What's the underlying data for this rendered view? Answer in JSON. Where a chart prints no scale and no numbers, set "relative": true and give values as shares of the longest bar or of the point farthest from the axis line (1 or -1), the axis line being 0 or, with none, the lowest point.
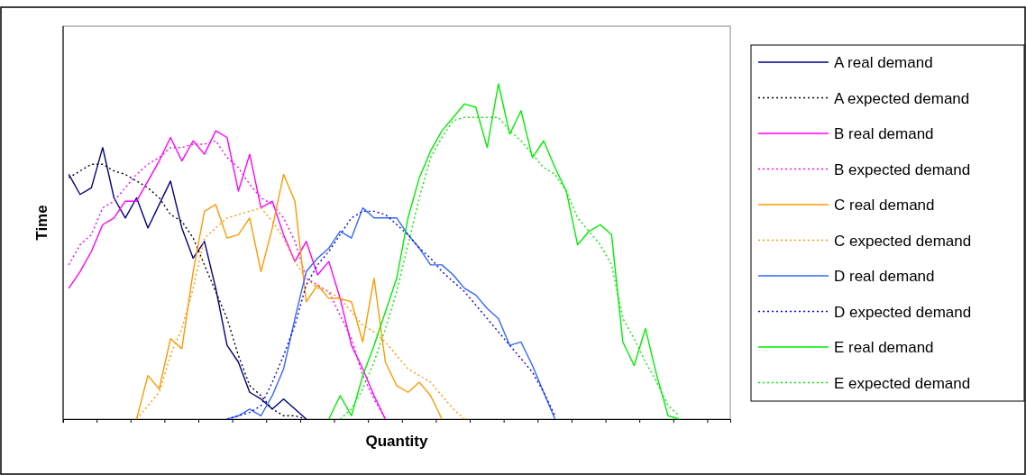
{
  "chart_data": {
    "type": "line",
    "xlabel": "Quantity",
    "ylabel": "Time",
    "relative": true,
    "legend": "right",
    "marker": "none",
    "categories": [
      null,
      null,
      null,
      null,
      null,
      null,
      null,
      null,
      null,
      null,
      null,
      null,
      null,
      null,
      null,
      null,
      null,
      null,
      null,
      null,
      null,
      null,
      null,
      null,
      null,
      null,
      null,
      null,
      null,
      null,
      null,
      null,
      null,
      null,
      null,
      null,
      null,
      null,
      null,
      null,
      null,
      null,
      null,
      null,
      null,
      null,
      null,
      null,
      null,
      null,
      null,
      null,
      null,
      null,
      null,
      null,
      null,
      null,
      null
    ],
    "series": [
      {
        "name": "A real demand",
        "color": "#000080",
        "line_style": "solid",
        "values": [
          0.73,
          0.67,
          0.69,
          0.81,
          0.66,
          0.6,
          0.66,
          0.57,
          0.64,
          0.71,
          0.57,
          0.48,
          0.53,
          0.39,
          0.22,
          0.17,
          0.08,
          0.06,
          0.03,
          0.06,
          0.03,
          0,
          null,
          null,
          null,
          null,
          null,
          null,
          null,
          null,
          null,
          null,
          null,
          null,
          null,
          null,
          null,
          null,
          null,
          null,
          null,
          null,
          null,
          null,
          null,
          null,
          null,
          null,
          null,
          null,
          null,
          null,
          null,
          null,
          null,
          null,
          null,
          null,
          null
        ]
      },
      {
        "name": "A expected demand",
        "color": "#000000",
        "line_style": "dotted",
        "values": [
          0.72,
          0.74,
          0.76,
          0.76,
          0.74,
          0.73,
          0.71,
          0.69,
          0.66,
          0.61,
          0.59,
          0.54,
          0.46,
          0.38,
          0.3,
          0.19,
          0.1,
          0.07,
          0.03,
          0.01,
          0.01,
          0,
          null,
          null,
          null,
          null,
          null,
          null,
          null,
          null,
          null,
          null,
          null,
          null,
          null,
          null,
          null,
          null,
          null,
          null,
          null,
          null,
          null,
          null,
          null,
          null,
          null,
          null,
          null,
          null,
          null,
          null,
          null,
          null,
          null,
          null,
          null,
          null,
          null
        ]
      },
      {
        "name": "B real demand",
        "color": "#ff00ff",
        "line_style": "solid",
        "values": [
          0.39,
          0.44,
          0.5,
          0.58,
          0.6,
          0.65,
          0.65,
          0.71,
          0.77,
          0.84,
          0.77,
          0.83,
          0.79,
          0.86,
          0.84,
          0.68,
          0.79,
          0.63,
          0.65,
          0.55,
          0.47,
          0.53,
          0.43,
          0.47,
          0.36,
          0.22,
          0.15,
          0.07,
          0,
          null,
          null,
          null,
          null,
          null,
          null,
          null,
          null,
          null,
          null,
          null,
          null,
          null,
          null,
          null,
          null,
          null,
          null,
          null,
          null,
          null,
          null,
          null,
          null,
          null,
          null,
          null,
          null,
          null,
          null
        ]
      },
      {
        "name": "B expected demand",
        "color": "#ff00ff",
        "line_style": "dotted",
        "values": [
          0.46,
          0.52,
          0.55,
          0.63,
          0.65,
          0.69,
          0.73,
          0.76,
          0.78,
          0.81,
          0.81,
          0.82,
          0.82,
          0.83,
          0.78,
          0.75,
          0.7,
          0.66,
          0.64,
          0.6,
          0.53,
          0.42,
          0.4,
          0.38,
          0.31,
          0.24,
          0.13,
          0.06,
          0,
          null,
          null,
          null,
          null,
          null,
          null,
          null,
          null,
          null,
          null,
          null,
          null,
          null,
          null,
          null,
          null,
          null,
          null,
          null,
          null,
          null,
          null,
          null,
          null,
          null,
          null,
          null,
          null,
          null,
          null
        ]
      },
      {
        "name": "C real demand",
        "color": "#ff9900",
        "line_style": "solid",
        "values": [
          null,
          null,
          null,
          null,
          null,
          null,
          0,
          0.13,
          0.09,
          0.24,
          0.21,
          0.44,
          0.62,
          0.64,
          0.54,
          0.55,
          0.6,
          0.44,
          0.57,
          0.73,
          0.65,
          0.35,
          0.4,
          0.36,
          0.36,
          0.35,
          0.23,
          0.42,
          0.17,
          0.1,
          0.08,
          0.11,
          0.07,
          0,
          null,
          null,
          null,
          null,
          null,
          null,
          null,
          null,
          null,
          null,
          null,
          null,
          null,
          null,
          null,
          null,
          null,
          null,
          null,
          null,
          null,
          null,
          null,
          null,
          null
        ]
      },
      {
        "name": "C expected demand",
        "color": "#ff9900",
        "line_style": "dotted",
        "values": [
          null,
          null,
          null,
          null,
          null,
          null,
          0,
          0.04,
          0.08,
          0.19,
          0.27,
          0.39,
          0.54,
          0.57,
          0.6,
          0.61,
          0.62,
          0.63,
          0.59,
          0.54,
          0.47,
          0.42,
          0.39,
          0.38,
          0.36,
          0.32,
          0.28,
          0.26,
          0.23,
          0.19,
          0.15,
          0.13,
          0.11,
          0.07,
          0.03,
          0,
          null,
          null,
          null,
          null,
          null,
          null,
          null,
          null,
          null,
          null,
          null,
          null,
          null,
          null,
          null,
          null,
          null,
          null,
          null,
          null,
          null,
          null,
          null
        ]
      },
      {
        "name": "D real demand",
        "color": "#3366ff",
        "line_style": "solid",
        "values": [
          null,
          null,
          null,
          null,
          null,
          null,
          null,
          null,
          null,
          null,
          null,
          null,
          null,
          null,
          0,
          0.01,
          0.03,
          0.01,
          0.07,
          0.15,
          0.3,
          0.44,
          0.48,
          0.51,
          0.56,
          0.54,
          0.63,
          0.6,
          0.6,
          0.6,
          0.55,
          0.51,
          0.46,
          0.46,
          0.43,
          0.39,
          0.37,
          0.33,
          0.3,
          0.22,
          0.23,
          0.16,
          0.08,
          0,
          null,
          null,
          null,
          null,
          null,
          null,
          null,
          null,
          null,
          null,
          null,
          null,
          null,
          null,
          null
        ]
      },
      {
        "name": "D expected demand",
        "color": "#0000ff",
        "line_style": "dotted",
        "values": [
          null,
          null,
          null,
          null,
          null,
          null,
          null,
          null,
          null,
          null,
          null,
          null,
          null,
          null,
          0,
          0.01,
          0.02,
          0.04,
          0.11,
          0.19,
          0.28,
          0.4,
          0.46,
          0.5,
          0.55,
          0.6,
          0.62,
          0.62,
          0.61,
          0.58,
          0.55,
          0.51,
          0.48,
          0.44,
          0.41,
          0.38,
          0.34,
          0.3,
          0.26,
          0.22,
          0.18,
          0.14,
          0.08,
          0.01,
          null,
          null,
          null,
          null,
          null,
          null,
          null,
          null,
          null,
          null,
          null,
          null,
          null,
          null,
          null
        ]
      },
      {
        "name": "E real demand",
        "color": "#00ee00",
        "line_style": "solid",
        "values": [
          null,
          null,
          null,
          null,
          null,
          null,
          null,
          null,
          null,
          null,
          null,
          null,
          null,
          null,
          null,
          null,
          null,
          null,
          null,
          null,
          null,
          null,
          null,
          0,
          0.07,
          0.01,
          0.13,
          0.22,
          0.32,
          0.42,
          0.6,
          0.72,
          0.8,
          0.86,
          0.9,
          0.94,
          0.93,
          0.81,
          1,
          0.85,
          0.92,
          0.78,
          0.83,
          0.75,
          0.68,
          0.52,
          0.56,
          0.58,
          0.55,
          0.23,
          0.16,
          0.27,
          0.13,
          0.01,
          0,
          null,
          null,
          null,
          null
        ]
      },
      {
        "name": "E expected demand",
        "color": "#00ee00",
        "line_style": "dotted",
        "values": [
          null,
          null,
          null,
          null,
          null,
          null,
          null,
          null,
          null,
          null,
          null,
          null,
          null,
          null,
          null,
          null,
          null,
          null,
          null,
          null,
          null,
          null,
          null,
          null,
          0,
          0.03,
          0.09,
          0.17,
          0.27,
          0.38,
          0.52,
          0.66,
          0.78,
          0.84,
          0.89,
          0.9,
          0.9,
          0.9,
          0.9,
          0.86,
          0.83,
          0.79,
          0.75,
          0.73,
          0.68,
          0.6,
          0.56,
          0.52,
          0.46,
          0.3,
          0.24,
          0.17,
          0.11,
          0.04,
          0.01,
          null,
          null,
          null,
          null
        ]
      }
    ]
  }
}
